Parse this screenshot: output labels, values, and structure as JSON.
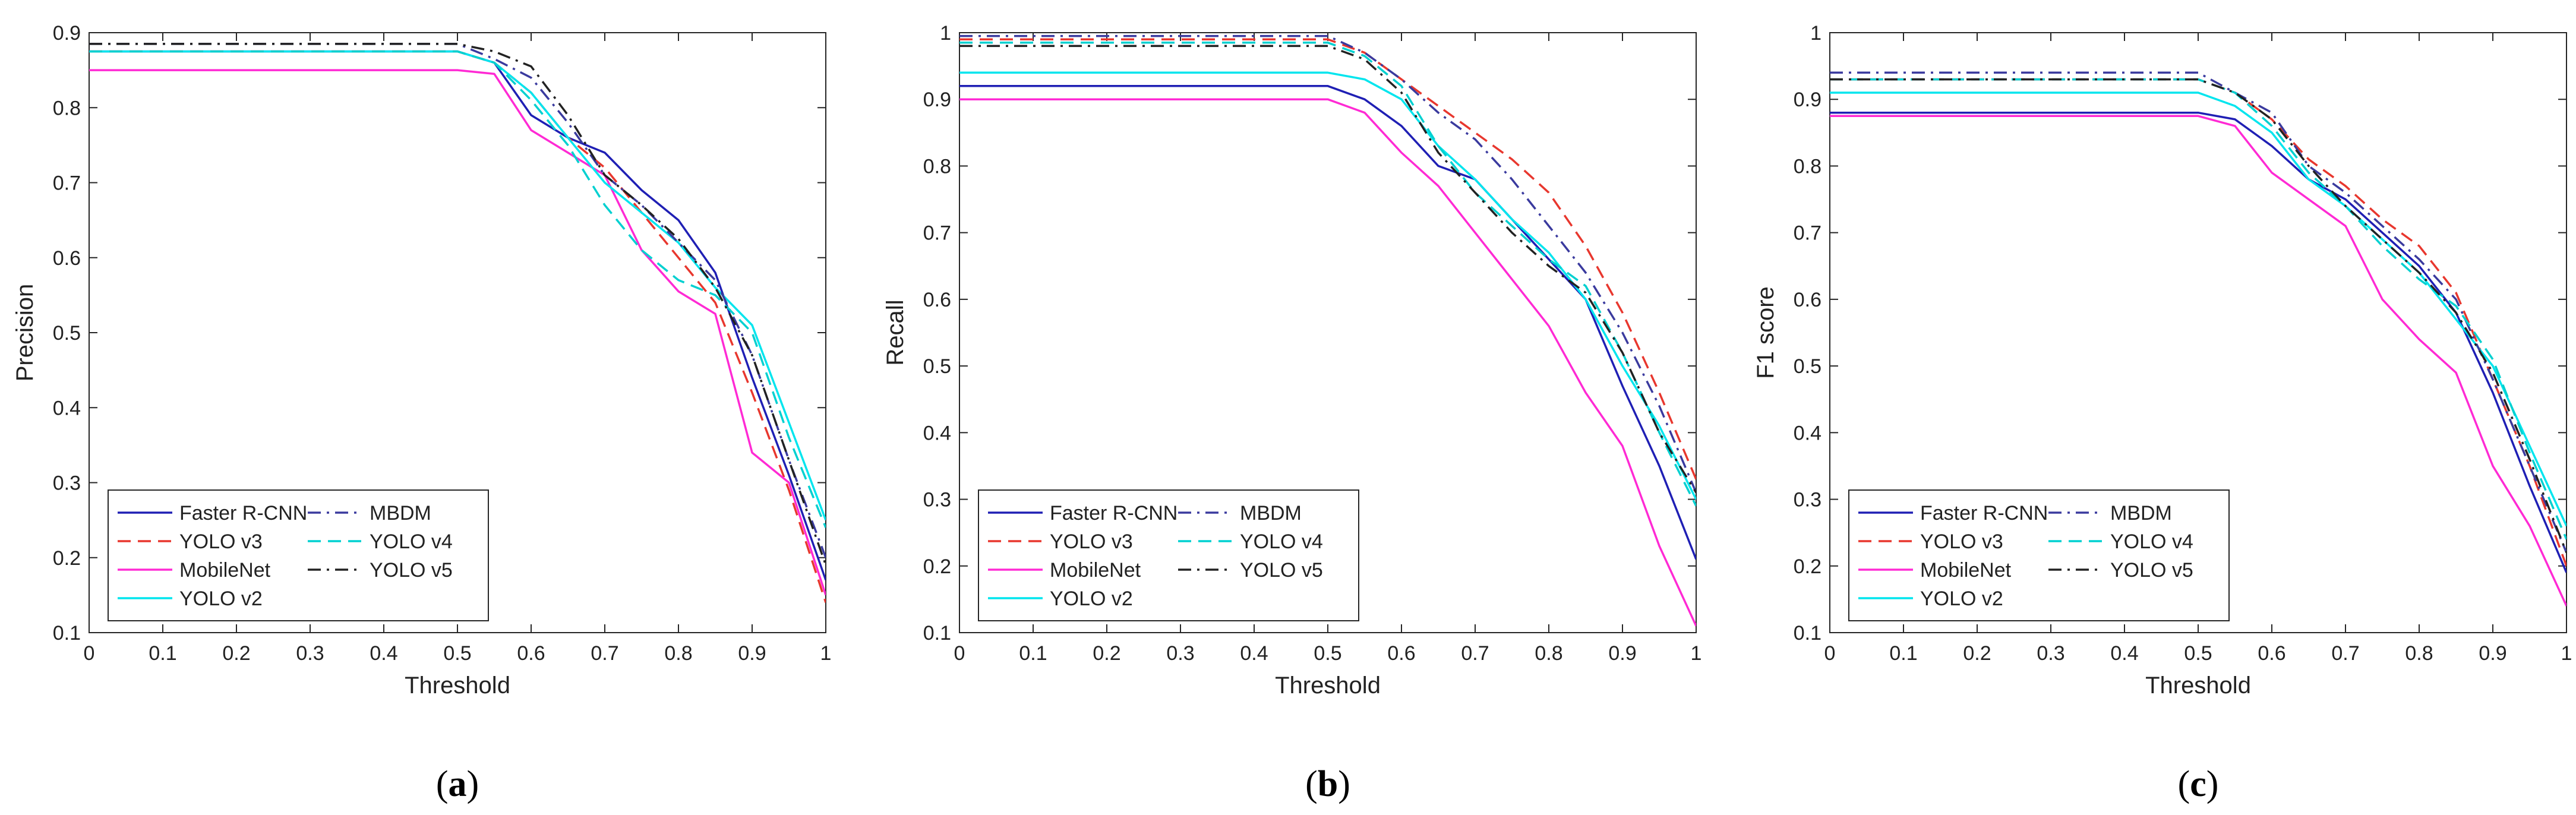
{
  "chart_data": [
    {
      "type": "line",
      "panel_label": "a",
      "xlabel": "Threshold",
      "ylabel": "Precision",
      "xlim": [
        0,
        1
      ],
      "ylim": [
        0.1,
        0.9
      ],
      "xticks": [
        "0",
        "0.1",
        "0.2",
        "0.3",
        "0.4",
        "0.5",
        "0.6",
        "0.7",
        "0.8",
        "0.9",
        "1"
      ],
      "yticks": [
        "0.1",
        "0.2",
        "0.3",
        "0.4",
        "0.5",
        "0.6",
        "0.7",
        "0.8",
        "0.9"
      ],
      "legend_position": "bottom-left",
      "series": [
        {
          "name": "Faster R-CNN",
          "color": "#1f1fb4",
          "dash": "solid",
          "x": [
            0,
            0.5,
            0.55,
            0.6,
            0.65,
            0.7,
            0.75,
            0.8,
            0.85,
            0.9,
            0.95,
            1
          ],
          "y": [
            0.875,
            0.875,
            0.86,
            0.79,
            0.76,
            0.74,
            0.69,
            0.65,
            0.58,
            0.44,
            0.31,
            0.17
          ]
        },
        {
          "name": "YOLO v3",
          "color": "#e8372e",
          "dash": "dashed",
          "x": [
            0,
            0.5,
            0.55,
            0.6,
            0.65,
            0.7,
            0.75,
            0.8,
            0.85,
            0.9,
            0.95,
            1
          ],
          "y": [
            0.875,
            0.875,
            0.86,
            0.82,
            0.76,
            0.72,
            0.66,
            0.6,
            0.54,
            0.42,
            0.29,
            0.14
          ]
        },
        {
          "name": "MobileNet",
          "color": "#ff2ad4",
          "dash": "solid",
          "x": [
            0,
            0.5,
            0.55,
            0.6,
            0.65,
            0.7,
            0.75,
            0.8,
            0.85,
            0.9,
            0.95,
            1
          ],
          "y": [
            0.85,
            0.85,
            0.845,
            0.77,
            0.74,
            0.71,
            0.61,
            0.555,
            0.525,
            0.34,
            0.3,
            0.15
          ]
        },
        {
          "name": "YOLO v2",
          "color": "#00e5ee",
          "dash": "solid",
          "x": [
            0,
            0.5,
            0.55,
            0.6,
            0.65,
            0.7,
            0.75,
            0.8,
            0.85,
            0.9,
            0.95,
            1
          ],
          "y": [
            0.875,
            0.875,
            0.86,
            0.82,
            0.76,
            0.7,
            0.66,
            0.62,
            0.56,
            0.51,
            0.38,
            0.25
          ]
        },
        {
          "name": "MBDM",
          "color": "#3a3a9e",
          "dash": "dashdot",
          "x": [
            0,
            0.5,
            0.55,
            0.6,
            0.65,
            0.7,
            0.75,
            0.8,
            0.85,
            0.9,
            0.95,
            1
          ],
          "y": [
            0.885,
            0.885,
            0.865,
            0.84,
            0.78,
            0.71,
            0.67,
            0.62,
            0.57,
            0.47,
            0.33,
            0.2
          ]
        },
        {
          "name": "YOLO v4",
          "color": "#00d0d0",
          "dash": "dashed",
          "x": [
            0,
            0.5,
            0.55,
            0.6,
            0.65,
            0.7,
            0.75,
            0.8,
            0.85,
            0.9,
            0.95,
            1
          ],
          "y": [
            0.875,
            0.875,
            0.86,
            0.81,
            0.75,
            0.67,
            0.61,
            0.57,
            0.55,
            0.5,
            0.36,
            0.24
          ]
        },
        {
          "name": "YOLO v5",
          "color": "#222222",
          "dash": "dashdot",
          "x": [
            0,
            0.5,
            0.55,
            0.6,
            0.65,
            0.7,
            0.75,
            0.8,
            0.85,
            0.9,
            0.95,
            1
          ],
          "y": [
            0.885,
            0.885,
            0.875,
            0.855,
            0.79,
            0.71,
            0.67,
            0.625,
            0.56,
            0.47,
            0.33,
            0.19
          ]
        }
      ]
    },
    {
      "type": "line",
      "panel_label": "b",
      "xlabel": "Threshold",
      "ylabel": "Recall",
      "xlim": [
        0,
        1
      ],
      "ylim": [
        0.1,
        1
      ],
      "xticks": [
        "0",
        "0.1",
        "0.2",
        "0.3",
        "0.4",
        "0.5",
        "0.6",
        "0.7",
        "0.8",
        "0.9",
        "1"
      ],
      "yticks": [
        "0.1",
        "0.2",
        "0.3",
        "0.4",
        "0.5",
        "0.6",
        "0.7",
        "0.8",
        "0.9",
        "1"
      ],
      "legend_position": "bottom-left",
      "series": [
        {
          "name": "Faster R-CNN",
          "color": "#1f1fb4",
          "dash": "solid",
          "x": [
            0,
            0.5,
            0.55,
            0.6,
            0.65,
            0.7,
            0.75,
            0.8,
            0.85,
            0.9,
            0.95,
            1
          ],
          "y": [
            0.92,
            0.92,
            0.9,
            0.86,
            0.8,
            0.78,
            0.72,
            0.66,
            0.6,
            0.47,
            0.35,
            0.21
          ]
        },
        {
          "name": "YOLO v3",
          "color": "#e8372e",
          "dash": "dashed",
          "x": [
            0,
            0.5,
            0.55,
            0.6,
            0.65,
            0.7,
            0.75,
            0.8,
            0.85,
            0.9,
            0.95,
            1
          ],
          "y": [
            0.99,
            0.99,
            0.97,
            0.93,
            0.89,
            0.85,
            0.81,
            0.76,
            0.68,
            0.58,
            0.46,
            0.33
          ]
        },
        {
          "name": "MobileNet",
          "color": "#ff2ad4",
          "dash": "solid",
          "x": [
            0,
            0.5,
            0.55,
            0.6,
            0.65,
            0.7,
            0.75,
            0.8,
            0.85,
            0.9,
            0.95,
            1
          ],
          "y": [
            0.9,
            0.9,
            0.88,
            0.82,
            0.77,
            0.7,
            0.63,
            0.56,
            0.46,
            0.38,
            0.23,
            0.11
          ]
        },
        {
          "name": "YOLO v2",
          "color": "#00e5ee",
          "dash": "solid",
          "x": [
            0,
            0.5,
            0.55,
            0.6,
            0.65,
            0.7,
            0.75,
            0.8,
            0.85,
            0.9,
            0.95,
            1
          ],
          "y": [
            0.94,
            0.94,
            0.93,
            0.9,
            0.83,
            0.78,
            0.72,
            0.67,
            0.6,
            0.5,
            0.41,
            0.3
          ]
        },
        {
          "name": "MBDM",
          "color": "#3a3a9e",
          "dash": "dashdot",
          "x": [
            0,
            0.5,
            0.55,
            0.6,
            0.65,
            0.7,
            0.75,
            0.8,
            0.85,
            0.9,
            0.95,
            1
          ],
          "y": [
            0.995,
            0.995,
            0.97,
            0.93,
            0.88,
            0.84,
            0.78,
            0.71,
            0.64,
            0.55,
            0.44,
            0.31
          ]
        },
        {
          "name": "YOLO v4",
          "color": "#00d0d0",
          "dash": "dashed",
          "x": [
            0,
            0.5,
            0.55,
            0.6,
            0.65,
            0.7,
            0.75,
            0.8,
            0.85,
            0.9,
            0.95,
            1
          ],
          "y": [
            0.985,
            0.985,
            0.965,
            0.92,
            0.83,
            0.76,
            0.71,
            0.66,
            0.62,
            0.52,
            0.4,
            0.29
          ]
        },
        {
          "name": "YOLO v5",
          "color": "#222222",
          "dash": "dashdot",
          "x": [
            0,
            0.5,
            0.55,
            0.6,
            0.65,
            0.7,
            0.75,
            0.8,
            0.85,
            0.9,
            0.95,
            1
          ],
          "y": [
            0.98,
            0.98,
            0.96,
            0.91,
            0.82,
            0.76,
            0.7,
            0.65,
            0.61,
            0.52,
            0.4,
            0.31
          ]
        }
      ]
    },
    {
      "type": "line",
      "panel_label": "c",
      "xlabel": "Threshold",
      "ylabel": "F1 score",
      "xlim": [
        0,
        1
      ],
      "ylim": [
        0.1,
        1
      ],
      "xticks": [
        "0",
        "0.1",
        "0.2",
        "0.3",
        "0.4",
        "0.5",
        "0.6",
        "0.7",
        "0.8",
        "0.9",
        "1"
      ],
      "yticks": [
        "0.1",
        "0.2",
        "0.3",
        "0.4",
        "0.5",
        "0.6",
        "0.7",
        "0.8",
        "0.9",
        "1"
      ],
      "legend_position": "bottom-left",
      "series": [
        {
          "name": "Faster R-CNN",
          "color": "#1f1fb4",
          "dash": "solid",
          "x": [
            0,
            0.5,
            0.55,
            0.6,
            0.65,
            0.7,
            0.75,
            0.8,
            0.85,
            0.9,
            0.95,
            1
          ],
          "y": [
            0.88,
            0.88,
            0.87,
            0.83,
            0.78,
            0.75,
            0.7,
            0.65,
            0.58,
            0.46,
            0.32,
            0.19
          ]
        },
        {
          "name": "YOLO v3",
          "color": "#e8372e",
          "dash": "dashed",
          "x": [
            0,
            0.5,
            0.55,
            0.6,
            0.65,
            0.7,
            0.75,
            0.8,
            0.85,
            0.9,
            0.95,
            1
          ],
          "y": [
            0.93,
            0.93,
            0.91,
            0.87,
            0.81,
            0.77,
            0.72,
            0.68,
            0.61,
            0.48,
            0.35,
            0.2
          ]
        },
        {
          "name": "MobileNet",
          "color": "#ff2ad4",
          "dash": "solid",
          "x": [
            0,
            0.5,
            0.55,
            0.6,
            0.65,
            0.7,
            0.75,
            0.8,
            0.85,
            0.9,
            0.95,
            1
          ],
          "y": [
            0.875,
            0.875,
            0.86,
            0.79,
            0.75,
            0.71,
            0.6,
            0.54,
            0.49,
            0.35,
            0.26,
            0.14
          ]
        },
        {
          "name": "YOLO v2",
          "color": "#00e5ee",
          "dash": "solid",
          "x": [
            0,
            0.5,
            0.55,
            0.6,
            0.65,
            0.7,
            0.75,
            0.8,
            0.85,
            0.9,
            0.95,
            1
          ],
          "y": [
            0.91,
            0.91,
            0.89,
            0.85,
            0.78,
            0.74,
            0.69,
            0.64,
            0.57,
            0.5,
            0.38,
            0.26
          ]
        },
        {
          "name": "MBDM",
          "color": "#3a3a9e",
          "dash": "dashdot",
          "x": [
            0,
            0.5,
            0.55,
            0.6,
            0.65,
            0.7,
            0.75,
            0.8,
            0.85,
            0.9,
            0.95,
            1
          ],
          "y": [
            0.94,
            0.94,
            0.91,
            0.88,
            0.8,
            0.76,
            0.71,
            0.66,
            0.6,
            0.48,
            0.35,
            0.22
          ]
        },
        {
          "name": "YOLO v4",
          "color": "#00d0d0",
          "dash": "dashed",
          "x": [
            0,
            0.5,
            0.55,
            0.6,
            0.65,
            0.7,
            0.75,
            0.8,
            0.85,
            0.9,
            0.95,
            1
          ],
          "y": [
            0.93,
            0.93,
            0.91,
            0.86,
            0.79,
            0.74,
            0.68,
            0.63,
            0.59,
            0.51,
            0.37,
            0.24
          ]
        },
        {
          "name": "YOLO v5",
          "color": "#222222",
          "dash": "dashdot",
          "x": [
            0,
            0.5,
            0.55,
            0.6,
            0.65,
            0.7,
            0.75,
            0.8,
            0.85,
            0.9,
            0.95,
            1
          ],
          "y": [
            0.93,
            0.93,
            0.91,
            0.87,
            0.8,
            0.74,
            0.69,
            0.64,
            0.58,
            0.49,
            0.36,
            0.22
          ]
        }
      ]
    }
  ]
}
